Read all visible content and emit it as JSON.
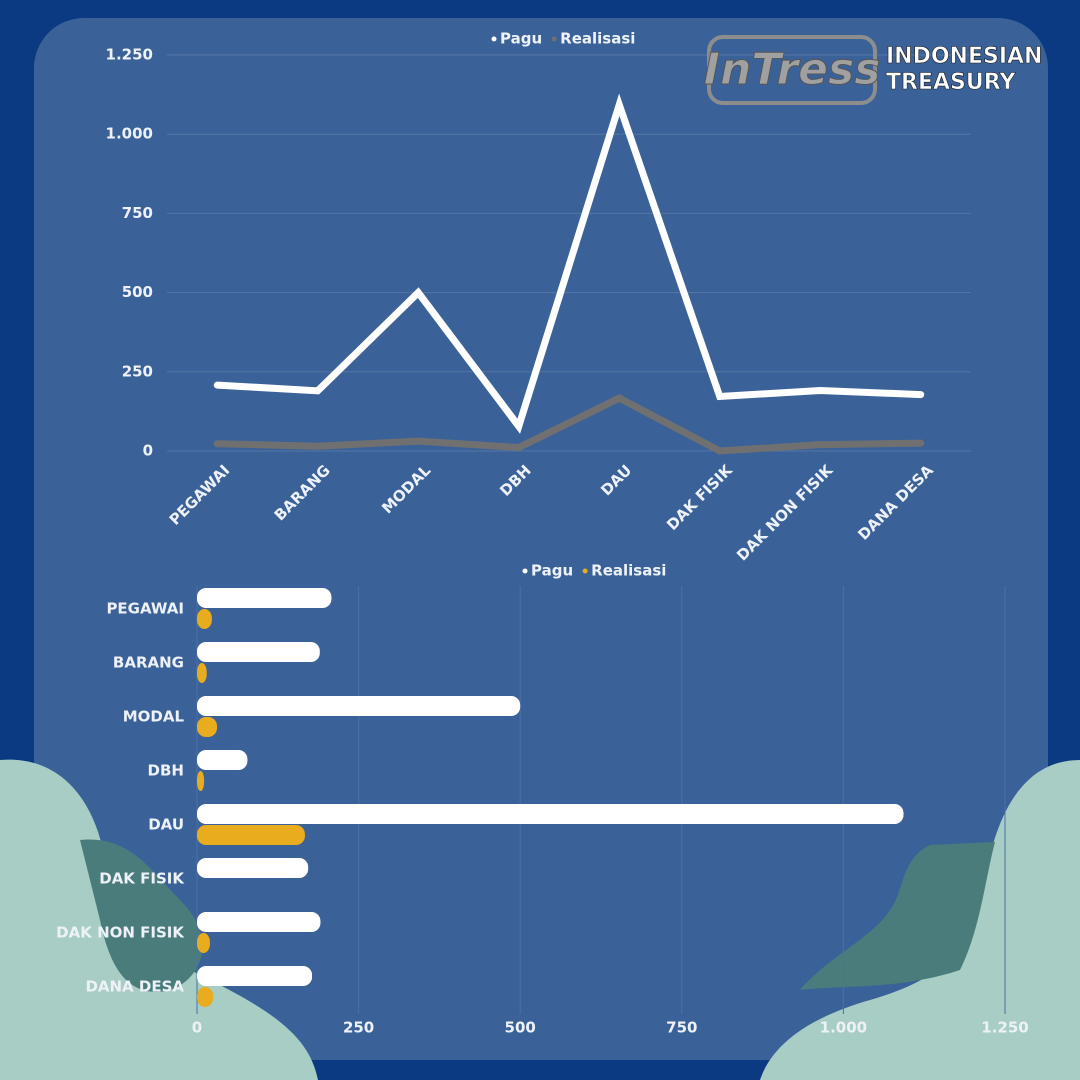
{
  "logo": {
    "mark": "InTress",
    "lines": [
      "INDONESIAN",
      "TREASURY"
    ]
  },
  "chart_data": [
    {
      "type": "line",
      "categories": [
        "PEGAWAI",
        "BARANG",
        "MODAL",
        "DBH",
        "DAU",
        "DAK FISIK",
        "DAK NON FISIK",
        "DANA DESA"
      ],
      "series": [
        {
          "name": "Pagu",
          "color": "#ffffff",
          "values": [
            208,
            190,
            500,
            78,
            1093,
            172,
            191,
            178
          ]
        },
        {
          "name": "Realisasi",
          "color": "#707070",
          "values": [
            23,
            15,
            31,
            11,
            167,
            0,
            20,
            25
          ]
        }
      ],
      "ylim": [
        0,
        1250
      ],
      "yticks": [
        0,
        250,
        500,
        750,
        {
          "value": 1000,
          "label": "1.000"
        },
        {
          "value": 1250,
          "label": "1.250"
        }
      ],
      "grid": true,
      "legend": "top"
    },
    {
      "type": "bar",
      "orientation": "horizontal",
      "categories": [
        "PEGAWAI",
        "BARANG",
        "MODAL",
        "DBH",
        "DAU",
        "DAK FISIK",
        "DAK NON FISIK",
        "DANA DESA"
      ],
      "series": [
        {
          "name": "Pagu",
          "color": "#ffffff",
          "values": [
            208,
            190,
            500,
            78,
            1093,
            172,
            191,
            178
          ]
        },
        {
          "name": "Realisasi",
          "color": "#e9ac1f",
          "values": [
            23,
            15,
            31,
            11,
            167,
            0,
            20,
            25
          ]
        }
      ],
      "xlim": [
        0,
        1250
      ],
      "xticks": [
        0,
        250,
        500,
        750,
        {
          "value": 1000,
          "label": "1.000"
        },
        {
          "value": 1250,
          "label": "1.250"
        }
      ],
      "grid": true,
      "legend": "top"
    }
  ]
}
